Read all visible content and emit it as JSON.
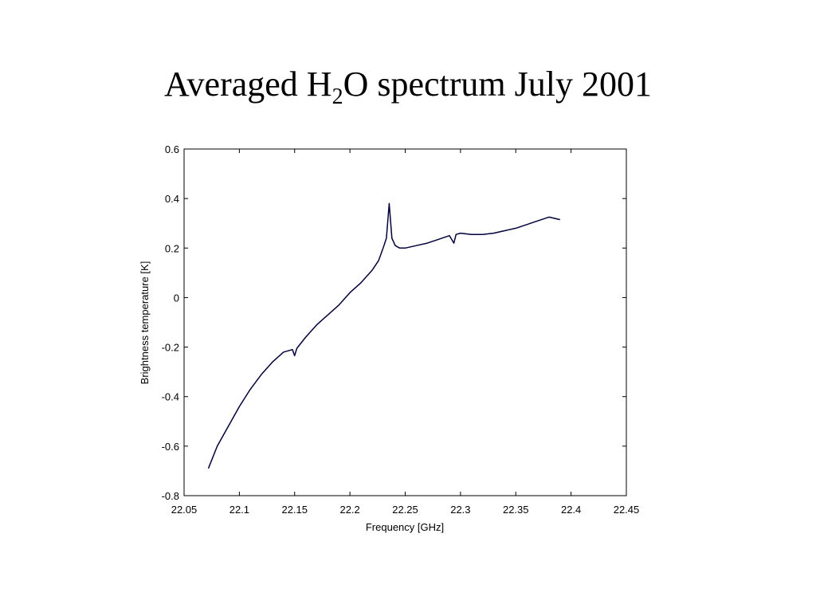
{
  "slide": {
    "title_main": "Averaged H",
    "title_sub": "2",
    "title_rest": "O spectrum July 2001"
  },
  "chart_data": {
    "type": "line",
    "title": "",
    "xlabel": "Frequency [GHz]",
    "ylabel": "Brightness temperature [K]",
    "xlim": [
      22.05,
      22.45
    ],
    "ylim": [
      -0.8,
      0.6
    ],
    "xticks": [
      22.05,
      22.1,
      22.15,
      22.2,
      22.25,
      22.3,
      22.35,
      22.4,
      22.45
    ],
    "xtick_labels": [
      "22.05",
      "22.1",
      "22.15",
      "22.2",
      "22.25",
      "22.3",
      "22.35",
      "22.4",
      "22.45"
    ],
    "yticks": [
      -0.8,
      -0.6,
      -0.4,
      -0.2,
      0,
      0.2,
      0.4,
      0.6
    ],
    "ytick_labels": [
      "-0.8",
      "-0.6",
      "-0.4",
      "-0.2",
      "0",
      "0.2",
      "0.4",
      "0.6"
    ],
    "grid": false,
    "line_color": "#00003a",
    "series": [
      {
        "x": [
          22.072,
          22.08,
          22.09,
          22.1,
          22.11,
          22.12,
          22.13,
          22.14,
          22.148,
          22.15,
          22.152,
          22.16,
          22.17,
          22.18,
          22.19,
          22.2,
          22.21,
          22.22,
          22.226,
          22.23,
          22.233,
          22.2355,
          22.238,
          22.241,
          22.245,
          22.25,
          22.26,
          22.27,
          22.28,
          22.29,
          22.294,
          22.296,
          22.3,
          22.31,
          22.32,
          22.33,
          22.34,
          22.35,
          22.36,
          22.37,
          22.38,
          22.385,
          22.39
        ],
        "y": [
          -0.69,
          -0.6,
          -0.52,
          -0.44,
          -0.37,
          -0.31,
          -0.26,
          -0.22,
          -0.21,
          -0.235,
          -0.205,
          -0.16,
          -0.11,
          -0.07,
          -0.03,
          0.02,
          0.06,
          0.11,
          0.15,
          0.2,
          0.24,
          0.38,
          0.24,
          0.21,
          0.2,
          0.2,
          0.21,
          0.22,
          0.235,
          0.25,
          0.22,
          0.255,
          0.26,
          0.255,
          0.255,
          0.26,
          0.27,
          0.28,
          0.295,
          0.31,
          0.325,
          0.32,
          0.315
        ]
      }
    ]
  }
}
